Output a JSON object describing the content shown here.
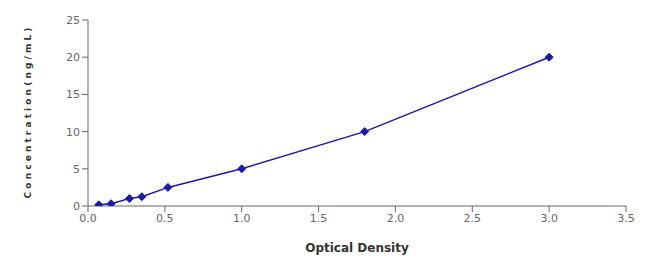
{
  "chart_data": {
    "type": "line",
    "xlabel": "Optical Density",
    "ylabel": "C o n c e n t r a t i o n ( n g / m L )",
    "x": [
      0.07,
      0.15,
      0.27,
      0.35,
      0.52,
      1.0,
      1.8,
      3.0
    ],
    "values": [
      0.16,
      0.31,
      1.0,
      1.25,
      2.5,
      5.0,
      10.0,
      20.0
    ],
    "color": "#1a1aaa",
    "marker": "diamond",
    "xlim": [
      0,
      3.5
    ],
    "ylim": [
      0,
      25
    ],
    "xticks": [
      {
        "value": 0,
        "label": "0.0"
      },
      0.5,
      {
        "value": 1,
        "label": "1.0"
      },
      1.5,
      {
        "value": 2,
        "label": "2.0"
      },
      2.5,
      {
        "value": 3,
        "label": "3.0"
      },
      3.5
    ],
    "yticks": [
      0,
      5,
      10,
      15,
      20,
      25
    ],
    "grid": false
  }
}
